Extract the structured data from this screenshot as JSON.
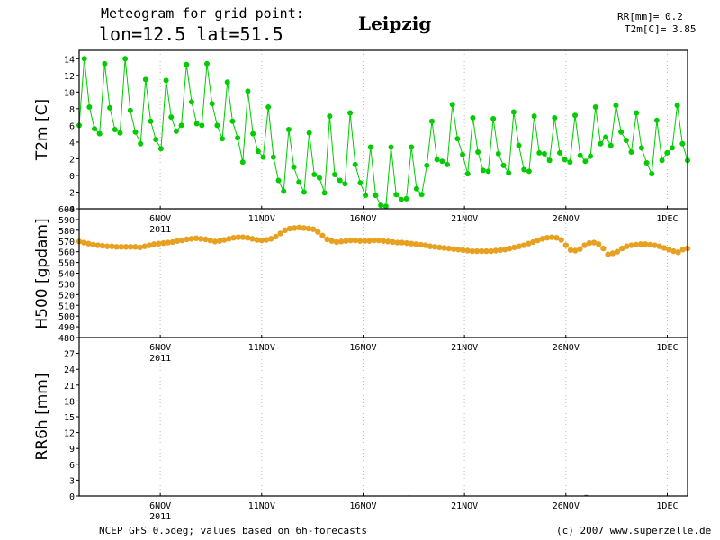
{
  "header": {
    "line1": "Meteogram for grid point:",
    "line2": "lon=12.5 lat=51.5",
    "city": "Leipzig",
    "rr_value": "RR[mm]= 0.2",
    "t2m_value": "T2m[C]= 3.85"
  },
  "footer": {
    "left": "NCEP GFS 0.5deg; values based on 6h-forecasts",
    "right": "(c) 2007 www.superzelle.de"
  },
  "colors": {
    "t2m": "#00cc00",
    "h500": "#e8a020",
    "grid": "#bbbbbb"
  },
  "chart_data": [
    {
      "type": "line",
      "panel": "T2m",
      "ylabel": "T2m [C]",
      "ylim": [
        -4,
        15
      ],
      "yticks": [
        -4,
        -2,
        0,
        2,
        4,
        6,
        8,
        10,
        12,
        14
      ],
      "x_tick_labels": [
        "6NOV",
        "11NOV",
        "16NOV",
        "21NOV",
        "26NOV",
        "1DEC"
      ],
      "x_year_label": "2011",
      "values": [
        6.0,
        14.0,
        8.2,
        5.6,
        5.0,
        13.4,
        8.1,
        5.5,
        5.1,
        14.0,
        7.8,
        5.2,
        3.8,
        11.5,
        6.5,
        4.3,
        3.2,
        11.4,
        7.0,
        5.3,
        6.0,
        13.3,
        8.8,
        6.2,
        6.0,
        13.4,
        8.6,
        6.0,
        4.4,
        11.2,
        6.5,
        4.5,
        1.6,
        10.1,
        5.0,
        2.9,
        2.2,
        8.2,
        2.2,
        -0.6,
        -1.9,
        5.5,
        1.0,
        -0.8,
        -2.0,
        5.1,
        0.1,
        -0.3,
        -2.1,
        7.1,
        0.1,
        -0.6,
        -1.0,
        7.5,
        1.3,
        -0.9,
        -2.4,
        3.4,
        -2.4,
        -3.6,
        -3.7,
        3.4,
        -2.3,
        -2.9,
        -2.8,
        3.4,
        -1.6,
        -2.3,
        1.2,
        6.5,
        1.9,
        1.7,
        1.3,
        8.5,
        4.4,
        2.5,
        0.2,
        6.9,
        2.8,
        0.6,
        0.5,
        6.8,
        2.6,
        1.2,
        0.3,
        7.6,
        3.6,
        0.7,
        0.5,
        7.1,
        2.7,
        2.6,
        1.8,
        6.9,
        2.7,
        1.9,
        1.6,
        7.2,
        2.4,
        1.7,
        2.3,
        8.2,
        3.8,
        4.6,
        3.6,
        8.4,
        5.2,
        4.2,
        2.8,
        7.5,
        3.3,
        1.5,
        0.2,
        6.6,
        1.8,
        2.7,
        3.3,
        8.4,
        3.8,
        1.8
      ]
    },
    {
      "type": "scatter",
      "panel": "H500",
      "ylabel": "H500 [gpdam]",
      "ylim": [
        480,
        600
      ],
      "yticks": [
        480,
        490,
        500,
        510,
        520,
        530,
        540,
        550,
        560,
        570,
        580,
        590,
        600
      ],
      "x_tick_labels": [
        "6NOV",
        "11NOV",
        "16NOV",
        "21NOV",
        "26NOV",
        "1DEC"
      ],
      "x_year_label": "2011",
      "values": [
        569.5,
        568.5,
        567.5,
        566.5,
        566.0,
        565.5,
        565.0,
        565.0,
        564.5,
        564.5,
        564.5,
        564.5,
        564.5,
        564.0,
        565.0,
        566.0,
        567.0,
        567.5,
        568.0,
        568.5,
        569.0,
        570.0,
        570.5,
        571.5,
        572.0,
        572.5,
        572.0,
        571.5,
        570.5,
        569.5,
        570.0,
        571.0,
        572.0,
        573.0,
        573.5,
        573.5,
        573.0,
        572.0,
        571.0,
        570.5,
        571.0,
        572.0,
        574.0,
        577.0,
        580.0,
        581.5,
        582.0,
        582.5,
        582.0,
        581.5,
        581.0,
        578.5,
        575.0,
        571.5,
        570.0,
        569.0,
        569.5,
        570.0,
        570.5,
        570.5,
        570.0,
        570.0,
        570.0,
        570.5,
        570.5,
        570.0,
        569.5,
        569.0,
        568.5,
        568.5,
        568.0,
        567.5,
        567.0,
        566.5,
        566.0,
        565.0,
        564.5,
        564.0,
        563.5,
        563.0,
        562.5,
        562.0,
        561.5,
        561.0,
        560.5,
        560.5,
        560.5,
        560.5,
        560.5,
        561.0,
        561.5,
        562.0,
        563.0,
        564.0,
        565.0,
        566.0,
        567.5,
        569.0,
        570.5,
        572.0,
        573.0,
        573.5,
        573.0,
        571.0,
        566.0,
        561.5,
        561.0,
        562.5,
        566.0,
        568.0,
        568.5,
        567.0,
        563.0,
        557.5,
        558.5,
        560.0,
        563.0,
        565.0,
        566.0,
        566.5,
        567.0,
        567.0,
        566.5,
        566.0,
        565.0,
        563.5,
        562.0,
        560.5,
        559.5,
        562.0,
        563.0
      ]
    },
    {
      "type": "bar",
      "panel": "RR6h",
      "ylabel": "RR6h [mm]",
      "ylim": [
        0,
        30
      ],
      "yticks": [
        0,
        3,
        6,
        9,
        12,
        15,
        18,
        21,
        24,
        27
      ],
      "x_tick_labels": [
        "6NOV",
        "11NOV",
        "16NOV",
        "21NOV",
        "26NOV",
        "1DEC"
      ],
      "x_year_label": "2011",
      "x_day_offsets": [
        16.25,
        25.0
      ],
      "values": [
        0.1,
        0.2
      ]
    }
  ]
}
